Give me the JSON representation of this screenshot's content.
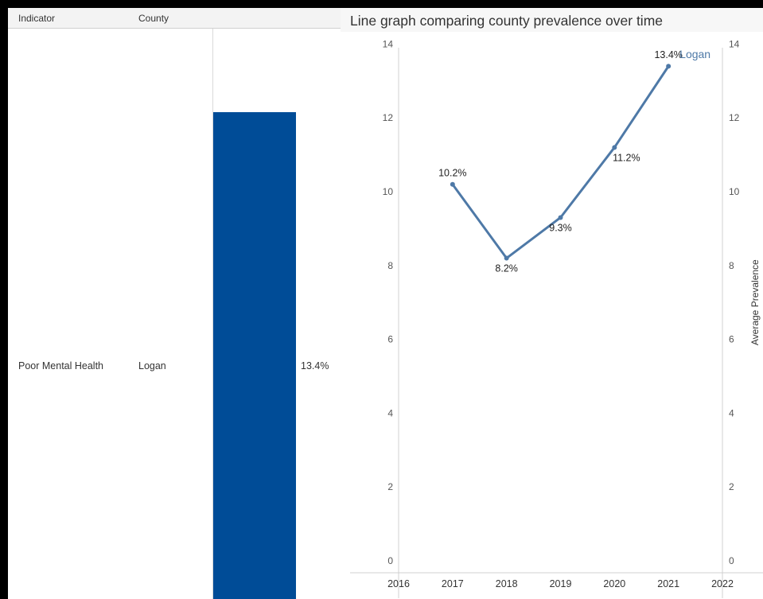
{
  "table": {
    "headers": {
      "indicator": "Indicator",
      "county": "County"
    },
    "row": {
      "indicator": "Poor Mental Health",
      "county": "Logan",
      "value_label": "13.4%",
      "value": 13.4
    },
    "bar_color": "#004c97"
  },
  "line_chart_title": "Line graph comparing county prevalence over time",
  "chart_data": {
    "type": "line",
    "title": "Line graph comparing county prevalence over time",
    "xlabel": "",
    "ylabel": "Average Prevalence",
    "x_ticks": [
      "2016",
      "2017",
      "2018",
      "2019",
      "2020",
      "2021",
      "2022"
    ],
    "y_ticks": [
      "0",
      "2",
      "4",
      "6",
      "8",
      "10",
      "12",
      "14"
    ],
    "xlim": [
      2016,
      2022
    ],
    "ylim": [
      0,
      14.6
    ],
    "series": [
      {
        "name": "Logan",
        "color": "#4e79a7",
        "x": [
          2017,
          2018,
          2019,
          2020,
          2021
        ],
        "y": [
          10.2,
          8.2,
          9.3,
          11.2,
          13.4
        ],
        "labels": [
          "10.2%",
          "8.2%",
          "9.3%",
          "11.2%",
          "13.4%"
        ]
      }
    ]
  }
}
